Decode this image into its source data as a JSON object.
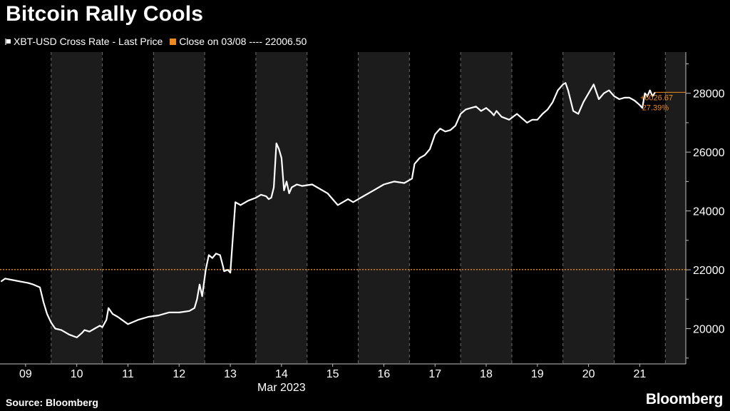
{
  "title": "Bitcoin Rally Cools",
  "legend": [
    {
      "label": "XBT-USD Cross Rate - Last Price",
      "color": "#ffffff",
      "kind": "series"
    },
    {
      "label": "Close on 03/08 ---- 22006.50",
      "color": "#f08a1c",
      "kind": "reference"
    }
  ],
  "source": "Source: Bloomberg",
  "logo": "Bloomberg",
  "colors": {
    "background": "#000000",
    "series": "#ffffff",
    "reference": "#f08a1c",
    "shade": "#1c1c1c",
    "grid": "#6a6a6a",
    "axis_text": "#ffffff"
  },
  "chart_data": {
    "type": "line",
    "title": "Bitcoin Rally Cools",
    "xlabel": "Mar 2023",
    "ylabel": "",
    "x_tick_labels": [
      "09",
      "10",
      "11",
      "12",
      "13",
      "14",
      "15",
      "16",
      "17",
      "18",
      "19",
      "20",
      "21"
    ],
    "x_range_days": [
      8.5,
      21.9
    ],
    "y_range": [
      18800,
      29400
    ],
    "y_ticks": [
      20000,
      22000,
      24000,
      26000,
      28000
    ],
    "y_axis_side": "right",
    "grid": "vertical dashed at day boundaries",
    "alternating_day_shading": true,
    "reference_line": {
      "label": "Close on 03/08",
      "value": 22006.5
    },
    "annotation": {
      "change": "+6026.67",
      "percent": "27.39%",
      "last_value": 28033.17
    },
    "series": [
      {
        "name": "XBT-USD Cross Rate - Last Price",
        "x_day": [
          8.52,
          8.6,
          8.75,
          8.9,
          9.05,
          9.15,
          9.28,
          9.35,
          9.42,
          9.5,
          9.58,
          9.7,
          9.85,
          10.0,
          10.1,
          10.15,
          10.25,
          10.35,
          10.45,
          10.5,
          10.58,
          10.62,
          10.7,
          10.8,
          11.0,
          11.2,
          11.4,
          11.6,
          11.8,
          12.0,
          12.2,
          12.3,
          12.35,
          12.4,
          12.45,
          12.52,
          12.58,
          12.65,
          12.72,
          12.8,
          12.86,
          12.88,
          12.95,
          13.0,
          13.1,
          13.2,
          13.35,
          13.5,
          13.6,
          13.7,
          13.75,
          13.8,
          13.85,
          13.9,
          13.95,
          14.0,
          14.05,
          14.1,
          14.15,
          14.2,
          14.3,
          14.4,
          14.6,
          14.8,
          14.9,
          15.0,
          15.1,
          15.2,
          15.3,
          15.4,
          15.6,
          15.8,
          16.0,
          16.2,
          16.4,
          16.55,
          16.6,
          16.7,
          16.8,
          16.9,
          17.0,
          17.1,
          17.2,
          17.3,
          17.4,
          17.5,
          17.6,
          17.7,
          17.8,
          17.9,
          18.0,
          18.1,
          18.15,
          18.2,
          18.3,
          18.45,
          18.6,
          18.7,
          18.8,
          18.9,
          19.0,
          19.1,
          19.2,
          19.3,
          19.4,
          19.5,
          19.55,
          19.6,
          19.7,
          19.8,
          19.9,
          20.0,
          20.1,
          20.2,
          20.3,
          20.4,
          20.5,
          20.6,
          20.7,
          20.8,
          20.9,
          21.0,
          21.05,
          21.1,
          21.15,
          21.2,
          21.25,
          21.3
        ],
        "values": [
          21600,
          21700,
          21650,
          21600,
          21550,
          21500,
          21400,
          20900,
          20500,
          20200,
          20000,
          19950,
          19800,
          19700,
          19850,
          19950,
          19900,
          20000,
          20100,
          20050,
          20300,
          20700,
          20500,
          20400,
          20150,
          20300,
          20400,
          20450,
          20550,
          20550,
          20600,
          20700,
          21000,
          21500,
          21100,
          22000,
          22500,
          22400,
          22550,
          22500,
          22100,
          21950,
          22000,
          21900,
          24300,
          24200,
          24350,
          24450,
          24550,
          24500,
          24400,
          24450,
          24800,
          26300,
          26100,
          25800,
          24700,
          25000,
          24600,
          24800,
          24900,
          24850,
          24900,
          24700,
          24600,
          24400,
          24200,
          24300,
          24400,
          24300,
          24500,
          24700,
          24900,
          25000,
          24950,
          25100,
          25600,
          25800,
          25900,
          26100,
          26600,
          26800,
          26700,
          26750,
          26900,
          27300,
          27450,
          27500,
          27550,
          27400,
          27500,
          27350,
          27250,
          27400,
          27200,
          27100,
          27300,
          27150,
          27000,
          27100,
          27100,
          27300,
          27450,
          27700,
          28100,
          28300,
          28350,
          28100,
          27400,
          27300,
          27700,
          28000,
          28300,
          27800,
          28000,
          28100,
          27900,
          27800,
          27850,
          27850,
          27750,
          27600,
          27500,
          28000,
          27900,
          28100,
          27900,
          28033
        ]
      }
    ]
  }
}
